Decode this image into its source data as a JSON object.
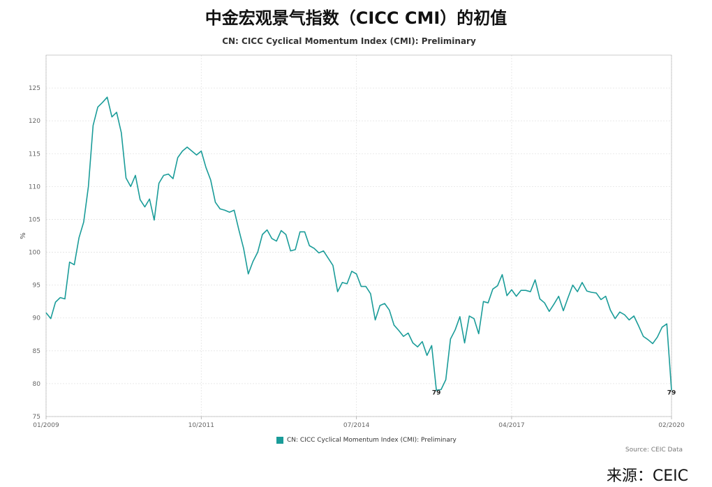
{
  "title": "中金宏观景气指数（CICC CMI）的初值",
  "subtitle": "CN: CICC Cyclical Momentum Index (CMI): Preliminary",
  "legend_label": "CN: CICC Cyclical Momentum Index (CMI): Preliminary",
  "source_note": "Source: CEIC Data",
  "source_cn": "来源：CEIC",
  "colors": {
    "series": "#1a9c99",
    "grid": "#e3e3e3",
    "axis": "#aaaaaa"
  },
  "chart_data": {
    "type": "line",
    "title": "CN: CICC Cyclical Momentum Index (CMI): Preliminary",
    "xlabel": "",
    "ylabel": "%",
    "ylim": [
      75,
      130
    ],
    "xlim": [
      "2009-01",
      "2020-02"
    ],
    "yticks": [
      75,
      80,
      85,
      90,
      95,
      100,
      105,
      110,
      115,
      120,
      125
    ],
    "xticks": [
      "01/2009",
      "10/2011",
      "07/2014",
      "04/2017",
      "02/2020"
    ],
    "grid": true,
    "legend_position": "bottom",
    "series": [
      {
        "name": "CN: CICC Cyclical Momentum Index (CMI): Preliminary",
        "x": [
          "2009-01",
          "2009-02",
          "2009-03",
          "2009-04",
          "2009-05",
          "2009-06",
          "2009-07",
          "2009-08",
          "2009-09",
          "2009-10",
          "2009-11",
          "2009-12",
          "2010-01",
          "2010-02",
          "2010-03",
          "2010-04",
          "2010-05",
          "2010-06",
          "2010-07",
          "2010-08",
          "2010-09",
          "2010-10",
          "2010-11",
          "2010-12",
          "2011-01",
          "2011-02",
          "2011-03",
          "2011-04",
          "2011-05",
          "2011-06",
          "2011-07",
          "2011-08",
          "2011-09",
          "2011-10",
          "2011-11",
          "2011-12",
          "2012-01",
          "2012-02",
          "2012-03",
          "2012-04",
          "2012-05",
          "2012-06",
          "2012-07",
          "2012-08",
          "2012-09",
          "2012-10",
          "2012-11",
          "2012-12",
          "2013-01",
          "2013-02",
          "2013-03",
          "2013-04",
          "2013-05",
          "2013-06",
          "2013-07",
          "2013-08",
          "2013-09",
          "2013-10",
          "2013-11",
          "2013-12",
          "2014-01",
          "2014-02",
          "2014-03",
          "2014-04",
          "2014-05",
          "2014-06",
          "2014-07",
          "2014-08",
          "2014-09",
          "2014-10",
          "2014-11",
          "2014-12",
          "2015-01",
          "2015-02",
          "2015-03",
          "2015-04",
          "2015-05",
          "2015-06",
          "2015-07",
          "2015-08",
          "2015-09",
          "2015-10",
          "2015-11",
          "2015-12",
          "2016-01",
          "2016-02",
          "2016-03",
          "2016-04",
          "2016-05",
          "2016-06",
          "2016-07",
          "2016-08",
          "2016-09",
          "2016-10",
          "2016-11",
          "2016-12",
          "2017-01",
          "2017-02",
          "2017-03",
          "2017-04",
          "2017-05",
          "2017-06",
          "2017-07",
          "2017-08",
          "2017-09",
          "2017-10",
          "2017-11",
          "2017-12",
          "2018-01",
          "2018-02",
          "2018-03",
          "2018-04",
          "2018-05",
          "2018-06",
          "2018-07",
          "2018-08",
          "2018-09",
          "2018-10",
          "2018-11",
          "2018-12",
          "2019-01",
          "2019-02",
          "2019-03",
          "2019-04",
          "2019-05",
          "2019-06",
          "2019-07",
          "2019-08",
          "2019-09",
          "2019-10",
          "2019-11",
          "2019-12",
          "2020-01",
          "2020-02"
        ],
        "values": [
          90.8,
          89.9,
          92.4,
          93.1,
          92.9,
          98.5,
          98.1,
          102.2,
          104.6,
          110.0,
          119.3,
          122.1,
          122.8,
          123.6,
          120.6,
          121.3,
          118.2,
          111.3,
          110.0,
          111.7,
          108.0,
          106.9,
          108.1,
          104.9,
          110.5,
          111.7,
          111.9,
          111.2,
          114.4,
          115.4,
          116.0,
          115.4,
          114.8,
          115.4,
          112.9,
          111.0,
          107.6,
          106.6,
          106.4,
          106.1,
          106.4,
          103.4,
          100.6,
          96.7,
          98.6,
          100.0,
          102.7,
          103.4,
          102.1,
          101.7,
          103.3,
          102.7,
          100.2,
          100.4,
          103.1,
          103.1,
          101.0,
          100.6,
          99.9,
          100.2,
          99.1,
          98.0,
          94.0,
          95.4,
          95.2,
          97.1,
          96.7,
          94.8,
          94.8,
          93.7,
          89.7,
          91.9,
          92.2,
          91.2,
          88.9,
          88.1,
          87.2,
          87.7,
          86.2,
          85.6,
          86.4,
          84.3,
          85.8,
          79.0,
          79.1,
          80.6,
          86.8,
          88.2,
          90.2,
          86.2,
          90.3,
          89.9,
          87.6,
          92.5,
          92.3,
          94.4,
          94.9,
          96.6,
          93.4,
          94.3,
          93.3,
          94.2,
          94.2,
          94.0,
          95.8,
          92.9,
          92.3,
          91.0,
          92.1,
          93.3,
          91.1,
          93.1,
          95.0,
          94.0,
          95.4,
          94.1,
          93.9,
          93.8,
          92.8,
          93.3,
          91.2,
          89.9,
          90.9,
          90.5,
          89.7,
          90.3,
          88.8,
          87.2,
          86.7,
          86.1,
          87.1,
          88.6,
          89.1,
          79.0
        ]
      }
    ],
    "annotations": [
      {
        "x": "2015-12",
        "label": "79"
      },
      {
        "x": "2020-02",
        "label": "79"
      }
    ]
  }
}
